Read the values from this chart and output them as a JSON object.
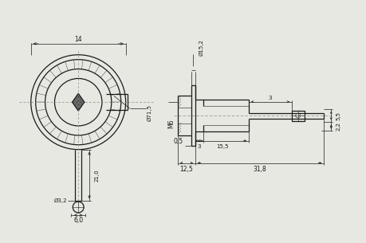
{
  "bg_color": "#e8e8e2",
  "line_color": "#1a1a1a",
  "text_color": "#1a1a1a",
  "fig_width": 4.59,
  "fig_height": 3.05,
  "dpi": 100,
  "annotations": {
    "dim_14": "14",
    "dim_phi715": "Ø71,5",
    "dim_phi32": "Ø3,2",
    "dim_210": "21,0",
    "dim_60": "6,0",
    "dim_M6": "M6",
    "dim_05": "0,5",
    "dim_phi152": "Ø15,2",
    "dim_3a": "3",
    "dim_3b": "3",
    "dim_55": "5,5",
    "dim_22": "2,2",
    "dim_125": "12,5",
    "dim_318": "31,8",
    "dim_155": "15,5"
  }
}
